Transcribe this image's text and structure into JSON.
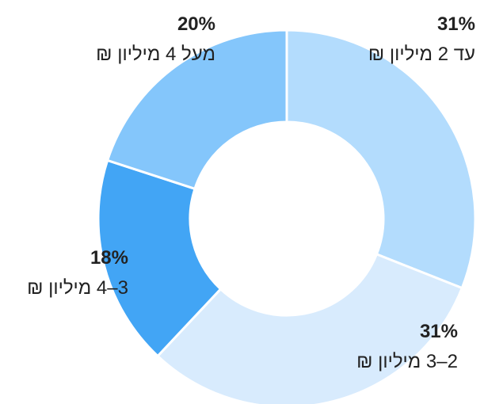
{
  "chart_data": {
    "type": "donut",
    "categories": [
      "עד 2 מיליון ₪",
      "2–3 מיליון ₪",
      "3–4 מיליון ₪",
      "מעל 4 מיליון ₪"
    ],
    "values": [
      31,
      31,
      18,
      20
    ],
    "value_labels": [
      "31%",
      "31%",
      "18%",
      "20%"
    ],
    "colors": [
      "#b3dcfd",
      "#d8ebfd",
      "#42a5f5",
      "#84c6fb"
    ]
  }
}
